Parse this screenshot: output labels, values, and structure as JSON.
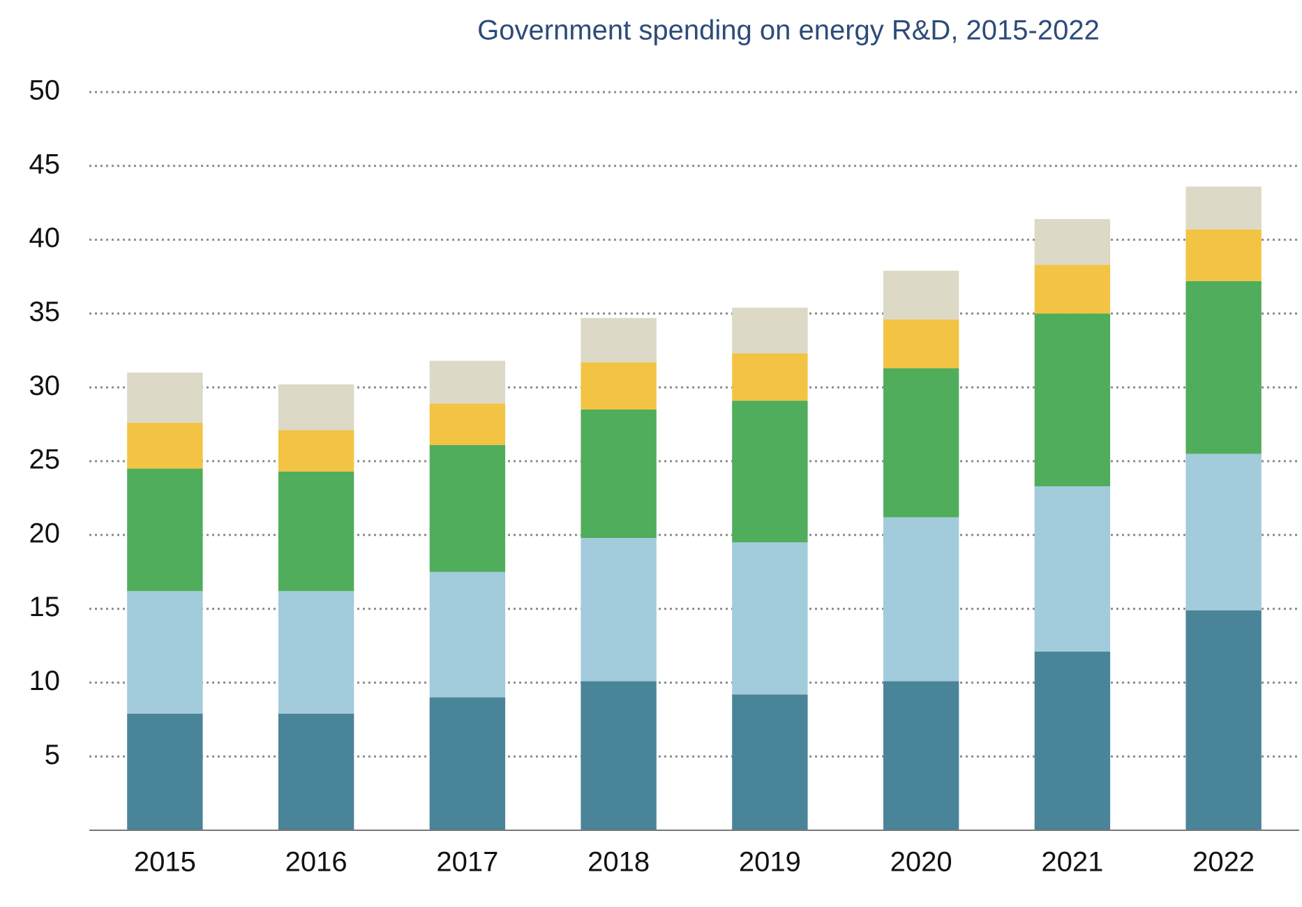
{
  "chart_data": {
    "type": "stacked_bar",
    "title": "Government spending on energy R&D, 2015-2022",
    "categories": [
      "2015",
      "2016",
      "2017",
      "2018",
      "2019",
      "2020",
      "2021",
      "2022"
    ],
    "series": [
      {
        "color": "#4a8499",
        "values": [
          7.9,
          7.9,
          9.0,
          10.1,
          9.2,
          10.1,
          12.1,
          14.9
        ]
      },
      {
        "color": "#a2cbdb",
        "values": [
          8.3,
          8.3,
          8.5,
          9.7,
          10.3,
          11.1,
          11.2,
          10.6
        ]
      },
      {
        "color": "#50ad5b",
        "values": [
          8.3,
          8.1,
          8.6,
          8.7,
          9.6,
          10.1,
          11.7,
          11.7
        ]
      },
      {
        "color": "#f3c343",
        "values": [
          3.1,
          2.8,
          2.8,
          3.2,
          3.2,
          3.3,
          3.3,
          3.5
        ]
      },
      {
        "color": "#dcd9c6",
        "values": [
          3.4,
          3.1,
          2.9,
          3.0,
          3.1,
          3.3,
          3.1,
          2.9
        ]
      }
    ],
    "ylim": [
      0,
      50
    ],
    "yticks": [
      5,
      10,
      15,
      20,
      25,
      30,
      35,
      40,
      45,
      50
    ],
    "grid": true
  }
}
